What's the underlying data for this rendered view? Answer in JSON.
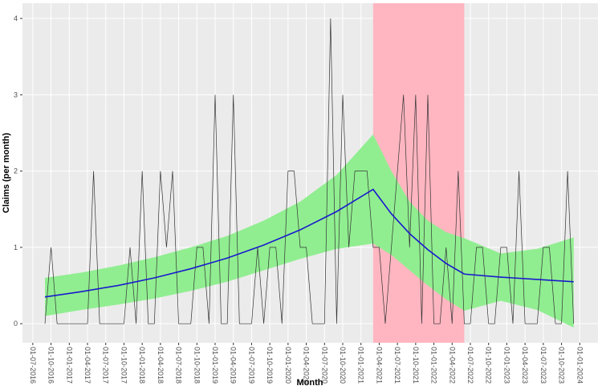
{
  "chart_data": {
    "type": "line",
    "x_label": "Month",
    "y_label": "Claims (per month)",
    "background": "#EBEBEB",
    "grid": true,
    "xlim": [
      "10-05-2016",
      "01-04-2024"
    ],
    "ylim": [
      -0.25,
      4.2
    ],
    "yticks": [
      0,
      1,
      2,
      3,
      4
    ],
    "xticks": [
      "01-07-2016",
      "01-10-2016",
      "01-01-2017",
      "01-04-2017",
      "01-07-2017",
      "01-10-2017",
      "01-01-2018",
      "01-04-2018",
      "01-07-2018",
      "01-10-2018",
      "01-01-2019",
      "01-04-2019",
      "01-07-2019",
      "01-10-2019",
      "01-01-2020",
      "01-04-2020",
      "01-07-2020",
      "01-10-2020",
      "01-01-2021",
      "01-04-2021",
      "01-07-2021",
      "01-10-2021",
      "01-01-2022",
      "01-04-2022",
      "01-07-2022",
      "01-10-2022",
      "01-01-2023",
      "01-04-2023",
      "01-07-2023",
      "01-10-2023",
      "01-01-2024"
    ],
    "highlight": {
      "xmin": "01-03-2021",
      "xmax": "01-06-2022",
      "color": "#FFB6C1"
    },
    "x": [
      "01-09-2016",
      "01-10-2016",
      "01-11-2016",
      "01-12-2016",
      "01-01-2017",
      "01-02-2017",
      "01-03-2017",
      "01-04-2017",
      "01-05-2017",
      "01-06-2017",
      "01-07-2017",
      "01-08-2017",
      "01-09-2017",
      "01-10-2017",
      "01-11-2017",
      "01-12-2017",
      "01-01-2018",
      "01-02-2018",
      "01-03-2018",
      "01-04-2018",
      "01-05-2018",
      "01-06-2018",
      "01-07-2018",
      "01-08-2018",
      "01-09-2018",
      "01-10-2018",
      "01-11-2018",
      "01-12-2018",
      "01-01-2019",
      "01-02-2019",
      "01-03-2019",
      "01-04-2019",
      "01-05-2019",
      "01-06-2019",
      "01-07-2019",
      "01-08-2019",
      "01-09-2019",
      "01-10-2019",
      "01-11-2019",
      "01-12-2019",
      "01-01-2020",
      "01-02-2020",
      "01-03-2020",
      "01-04-2020",
      "01-05-2020",
      "01-06-2020",
      "01-07-2020",
      "01-08-2020",
      "01-09-2020",
      "01-10-2020",
      "01-11-2020",
      "01-12-2020",
      "01-01-2021",
      "01-02-2021",
      "01-03-2021",
      "01-04-2021",
      "01-05-2021",
      "01-06-2021",
      "01-07-2021",
      "01-08-2021",
      "01-09-2021",
      "01-10-2021",
      "01-11-2021",
      "01-12-2021",
      "01-01-2022",
      "01-02-2022",
      "01-03-2022",
      "01-04-2022",
      "01-05-2022",
      "01-06-2022",
      "01-07-2022",
      "01-08-2022",
      "01-09-2022",
      "01-10-2022",
      "01-11-2022",
      "01-12-2022",
      "01-01-2023",
      "01-02-2023",
      "01-03-2023",
      "01-04-2023",
      "01-05-2023",
      "01-06-2023",
      "01-07-2023",
      "01-08-2023",
      "01-09-2023",
      "01-10-2023",
      "01-11-2023",
      "01-12-2023"
    ],
    "series": [
      {
        "color": "#333333",
        "values": [
          0,
          1,
          0,
          0,
          0,
          0,
          0,
          0,
          2,
          0,
          0,
          0,
          0,
          0,
          1,
          0,
          2,
          0,
          0,
          2,
          1,
          2,
          0,
          0,
          0,
          1,
          1,
          0,
          3,
          0,
          0,
          3,
          0,
          0,
          0,
          1,
          0,
          1,
          1,
          0,
          2,
          2,
          1,
          1,
          0,
          0,
          0,
          4,
          0,
          3,
          1,
          2,
          2,
          2,
          1,
          1,
          0,
          1,
          2,
          3,
          1,
          3,
          0,
          3,
          0,
          0,
          1,
          0,
          2,
          0,
          0,
          1,
          1,
          0,
          0,
          1,
          1,
          0,
          2,
          0,
          0,
          0,
          1,
          1,
          0,
          0,
          2,
          0
        ]
      }
    ],
    "smooth": {
      "color": "#1A1ACD",
      "fill": "#90EE90",
      "x": [
        "01-09-2016",
        "01-03-2017",
        "01-09-2017",
        "01-03-2018",
        "01-09-2018",
        "01-03-2019",
        "01-09-2019",
        "01-03-2020",
        "01-09-2020",
        "01-03-2021",
        "01-06-2021",
        "01-09-2021",
        "01-12-2021",
        "01-03-2022",
        "01-06-2022",
        "01-12-2022",
        "01-06-2023",
        "01-12-2023"
      ],
      "values": [
        0.35,
        0.42,
        0.5,
        0.6,
        0.72,
        0.86,
        1.03,
        1.23,
        1.47,
        1.76,
        1.44,
        1.18,
        0.97,
        0.79,
        0.65,
        0.61,
        0.58,
        0.55
      ],
      "upper": [
        0.6,
        0.67,
        0.76,
        0.87,
        1.0,
        1.15,
        1.35,
        1.6,
        1.95,
        2.48,
        2.0,
        1.6,
        1.35,
        1.2,
        1.12,
        0.92,
        0.98,
        1.13
      ],
      "lower": [
        0.1,
        0.18,
        0.25,
        0.33,
        0.43,
        0.55,
        0.7,
        0.85,
        0.98,
        1.05,
        0.9,
        0.7,
        0.5,
        0.32,
        0.17,
        0.3,
        0.18,
        -0.05
      ]
    }
  }
}
